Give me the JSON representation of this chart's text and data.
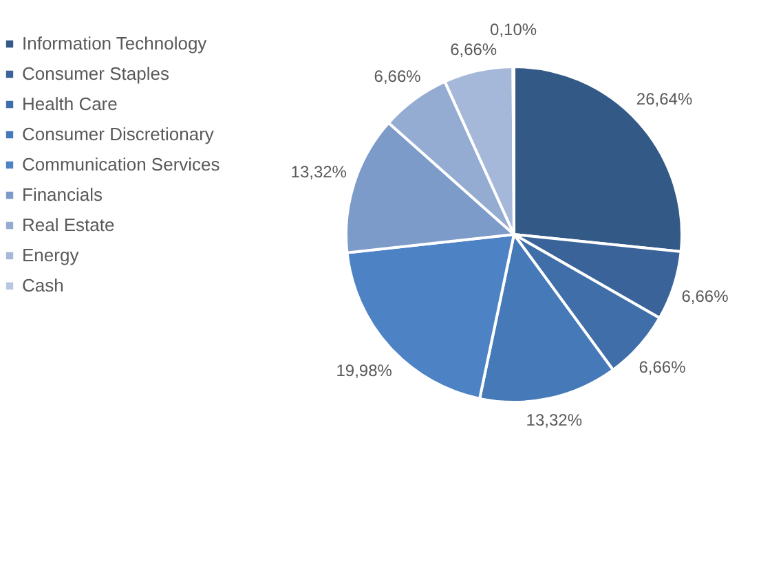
{
  "chart_data": {
    "type": "pie",
    "categories": [
      "Information Technology",
      "Consumer Staples",
      "Health Care",
      "Consumer Discretionary",
      "Communication Services",
      "Financials",
      "Real Estate",
      "Energy",
      "Cash"
    ],
    "values": [
      26.64,
      6.66,
      6.66,
      13.32,
      19.98,
      13.32,
      6.66,
      6.66,
      0.1
    ],
    "value_labels": [
      "26,64%",
      "6,66%",
      "6,66%",
      "13,32%",
      "19,98%",
      "13,32%",
      "6,66%",
      "6,66%",
      "0,10%"
    ],
    "colors": [
      "#335a87",
      "#3a6399",
      "#3f6ea9",
      "#4679b8",
      "#4d82c4",
      "#7d9bc9",
      "#95acd2",
      "#a5b8da",
      "#b7c6e2"
    ],
    "legend": "left"
  }
}
